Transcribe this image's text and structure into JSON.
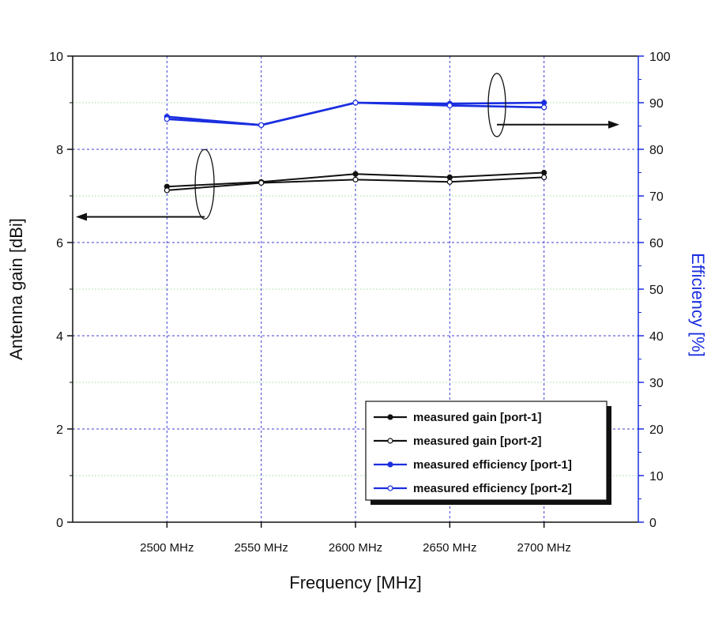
{
  "chart_data": {
    "type": "line",
    "xlabel": "Frequency [MHz]",
    "ylabel": "Antenna gain [dBi]",
    "ylabel_right": "Efficiency [%]",
    "x_categories": [
      "2500 MHz",
      "2550 MHz",
      "2600 MHz",
      "2650 MHz",
      "2700 MHz"
    ],
    "x": [
      2500,
      2550,
      2600,
      2650,
      2700
    ],
    "xlim": [
      2450,
      2750
    ],
    "ylim": [
      0,
      10
    ],
    "ylim_right": [
      0,
      100
    ],
    "yticks": [
      "0",
      "2",
      "4",
      "6",
      "8",
      "10"
    ],
    "yticks_right": [
      "0",
      "10",
      "20",
      "30",
      "40",
      "50",
      "60",
      "70",
      "80",
      "90",
      "100"
    ],
    "grid": true,
    "legend_position": "bottom-right",
    "series": [
      {
        "name": "measured gain [port-1]",
        "axis": "left",
        "color": "#111111",
        "marker": "filled",
        "values": [
          7.2,
          7.3,
          7.47,
          7.4,
          7.5
        ]
      },
      {
        "name": "measured gain [port-2]",
        "axis": "left",
        "color": "#111111",
        "marker": "hollow",
        "values": [
          7.12,
          7.28,
          7.35,
          7.3,
          7.4
        ]
      },
      {
        "name": "measured efficiency [port-1]",
        "axis": "right",
        "color": "#1a2ee0",
        "marker": "filled",
        "values": [
          87,
          85.2,
          90,
          89.8,
          90
        ]
      },
      {
        "name": "measured efficiency [port-2]",
        "axis": "right",
        "color": "#1a2ee0",
        "marker": "hollow",
        "values": [
          86.5,
          85.2,
          90,
          89.4,
          89
        ]
      }
    ]
  },
  "colors": {
    "axis_left": "#111111",
    "axis_right": "#1a2ee0",
    "grid_major": "#3c3cd6",
    "grid_minor": "#b8e0b8"
  }
}
